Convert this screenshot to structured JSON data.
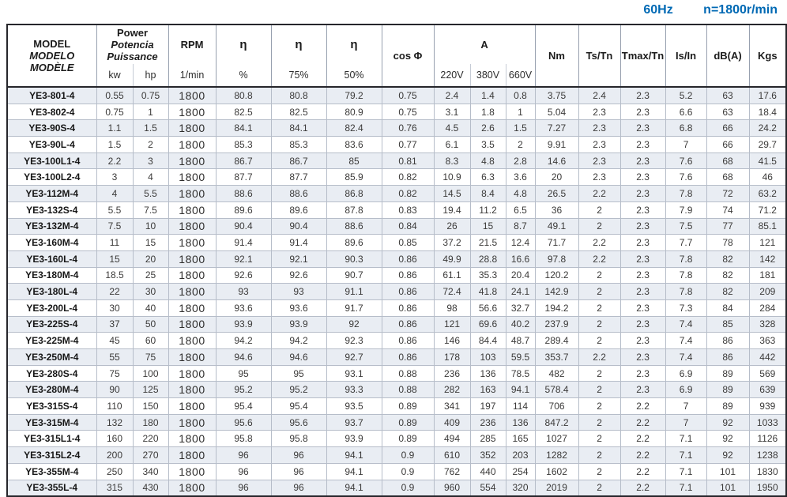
{
  "title": {
    "frequency": "60Hz",
    "speed": "n=1800r/min"
  },
  "colors": {
    "accent_blue": "#0069b4",
    "row_stripe": "#e9edf3",
    "border_dark": "#26262b",
    "border_light": "#b6bdc9"
  },
  "table": {
    "header": {
      "model_lines": [
        "MODEL",
        "MODELO",
        "MODÈLE"
      ],
      "power_lines": [
        "Power",
        "Potencia",
        "Puissance"
      ],
      "power_units": [
        "kw",
        "hp"
      ],
      "rpm_label": "RPM",
      "rpm_unit": "1/min",
      "eta_label": "η",
      "eta_units": [
        "%",
        "75%",
        "50%"
      ],
      "cos_phi_label": "cos Φ",
      "current_label": "A",
      "current_units": [
        "220V",
        "380V",
        "660V"
      ],
      "torque_label": "Nm",
      "ts_tn_label": "Ts/Tn",
      "tmax_tn_label": "Tmax/Tn",
      "is_in_label": "Is/In",
      "noise_label": "dB(A)",
      "weight_label": "Kgs"
    },
    "rows": [
      [
        "YE3-801-4",
        "0.55",
        "0.75",
        "1800",
        "80.8",
        "80.8",
        "79.2",
        "0.75",
        "2.4",
        "1.4",
        "0.8",
        "3.75",
        "2.4",
        "2.3",
        "5.2",
        "63",
        "17.6"
      ],
      [
        "YE3-802-4",
        "0.75",
        "1",
        "1800",
        "82.5",
        "82.5",
        "80.9",
        "0.75",
        "3.1",
        "1.8",
        "1",
        "5.04",
        "2.3",
        "2.3",
        "6.6",
        "63",
        "18.4"
      ],
      [
        "YE3-90S-4",
        "1.1",
        "1.5",
        "1800",
        "84.1",
        "84.1",
        "82.4",
        "0.76",
        "4.5",
        "2.6",
        "1.5",
        "7.27",
        "2.3",
        "2.3",
        "6.8",
        "66",
        "24.2"
      ],
      [
        "YE3-90L-4",
        "1.5",
        "2",
        "1800",
        "85.3",
        "85.3",
        "83.6",
        "0.77",
        "6.1",
        "3.5",
        "2",
        "9.91",
        "2.3",
        "2.3",
        "7",
        "66",
        "29.7"
      ],
      [
        "YE3-100L1-4",
        "2.2",
        "3",
        "1800",
        "86.7",
        "86.7",
        "85",
        "0.81",
        "8.3",
        "4.8",
        "2.8",
        "14.6",
        "2.3",
        "2.3",
        "7.6",
        "68",
        "41.5"
      ],
      [
        "YE3-100L2-4",
        "3",
        "4",
        "1800",
        "87.7",
        "87.7",
        "85.9",
        "0.82",
        "10.9",
        "6.3",
        "3.6",
        "20",
        "2.3",
        "2.3",
        "7.6",
        "68",
        "46"
      ],
      [
        "YE3-112M-4",
        "4",
        "5.5",
        "1800",
        "88.6",
        "88.6",
        "86.8",
        "0.82",
        "14.5",
        "8.4",
        "4.8",
        "26.5",
        "2.2",
        "2.3",
        "7.8",
        "72",
        "63.2"
      ],
      [
        "YE3-132S-4",
        "5.5",
        "7.5",
        "1800",
        "89.6",
        "89.6",
        "87.8",
        "0.83",
        "19.4",
        "11.2",
        "6.5",
        "36",
        "2",
        "2.3",
        "7.9",
        "74",
        "71.2"
      ],
      [
        "YE3-132M-4",
        "7.5",
        "10",
        "1800",
        "90.4",
        "90.4",
        "88.6",
        "0.84",
        "26",
        "15",
        "8.7",
        "49.1",
        "2",
        "2.3",
        "7.5",
        "77",
        "85.1"
      ],
      [
        "YE3-160M-4",
        "11",
        "15",
        "1800",
        "91.4",
        "91.4",
        "89.6",
        "0.85",
        "37.2",
        "21.5",
        "12.4",
        "71.7",
        "2.2",
        "2.3",
        "7.7",
        "78",
        "121"
      ],
      [
        "YE3-160L-4",
        "15",
        "20",
        "1800",
        "92.1",
        "92.1",
        "90.3",
        "0.86",
        "49.9",
        "28.8",
        "16.6",
        "97.8",
        "2.2",
        "2.3",
        "7.8",
        "82",
        "142"
      ],
      [
        "YE3-180M-4",
        "18.5",
        "25",
        "1800",
        "92.6",
        "92.6",
        "90.7",
        "0.86",
        "61.1",
        "35.3",
        "20.4",
        "120.2",
        "2",
        "2.3",
        "7.8",
        "82",
        "181"
      ],
      [
        "YE3-180L-4",
        "22",
        "30",
        "1800",
        "93",
        "93",
        "91.1",
        "0.86",
        "72.4",
        "41.8",
        "24.1",
        "142.9",
        "2",
        "2.3",
        "7.8",
        "82",
        "209"
      ],
      [
        "YE3-200L-4",
        "30",
        "40",
        "1800",
        "93.6",
        "93.6",
        "91.7",
        "0.86",
        "98",
        "56.6",
        "32.7",
        "194.2",
        "2",
        "2.3",
        "7.3",
        "84",
        "284"
      ],
      [
        "YE3-225S-4",
        "37",
        "50",
        "1800",
        "93.9",
        "93.9",
        "92",
        "0.86",
        "121",
        "69.6",
        "40.2",
        "237.9",
        "2",
        "2.3",
        "7.4",
        "85",
        "328"
      ],
      [
        "YE3-225M-4",
        "45",
        "60",
        "1800",
        "94.2",
        "94.2",
        "92.3",
        "0.86",
        "146",
        "84.4",
        "48.7",
        "289.4",
        "2",
        "2.3",
        "7.4",
        "86",
        "363"
      ],
      [
        "YE3-250M-4",
        "55",
        "75",
        "1800",
        "94.6",
        "94.6",
        "92.7",
        "0.86",
        "178",
        "103",
        "59.5",
        "353.7",
        "2.2",
        "2.3",
        "7.4",
        "86",
        "442"
      ],
      [
        "YE3-280S-4",
        "75",
        "100",
        "1800",
        "95",
        "95",
        "93.1",
        "0.88",
        "236",
        "136",
        "78.5",
        "482",
        "2",
        "2.3",
        "6.9",
        "89",
        "569"
      ],
      [
        "YE3-280M-4",
        "90",
        "125",
        "1800",
        "95.2",
        "95.2",
        "93.3",
        "0.88",
        "282",
        "163",
        "94.1",
        "578.4",
        "2",
        "2.3",
        "6.9",
        "89",
        "639"
      ],
      [
        "YE3-315S-4",
        "110",
        "150",
        "1800",
        "95.4",
        "95.4",
        "93.5",
        "0.89",
        "341",
        "197",
        "114",
        "706",
        "2",
        "2.2",
        "7",
        "89",
        "939"
      ],
      [
        "YE3-315M-4",
        "132",
        "180",
        "1800",
        "95.6",
        "95.6",
        "93.7",
        "0.89",
        "409",
        "236",
        "136",
        "847.2",
        "2",
        "2.2",
        "7",
        "92",
        "1033"
      ],
      [
        "YE3-315L1-4",
        "160",
        "220",
        "1800",
        "95.8",
        "95.8",
        "93.9",
        "0.89",
        "494",
        "285",
        "165",
        "1027",
        "2",
        "2.2",
        "7.1",
        "92",
        "1126"
      ],
      [
        "YE3-315L2-4",
        "200",
        "270",
        "1800",
        "96",
        "96",
        "94.1",
        "0.9",
        "610",
        "352",
        "203",
        "1282",
        "2",
        "2.2",
        "7.1",
        "92",
        "1238"
      ],
      [
        "YE3-355M-4",
        "250",
        "340",
        "1800",
        "96",
        "96",
        "94.1",
        "0.9",
        "762",
        "440",
        "254",
        "1602",
        "2",
        "2.2",
        "7.1",
        "101",
        "1830"
      ],
      [
        "YE3-355L-4",
        "315",
        "430",
        "1800",
        "96",
        "96",
        "94.1",
        "0.9",
        "960",
        "554",
        "320",
        "2019",
        "2",
        "2.2",
        "7.1",
        "101",
        "1950"
      ]
    ]
  }
}
